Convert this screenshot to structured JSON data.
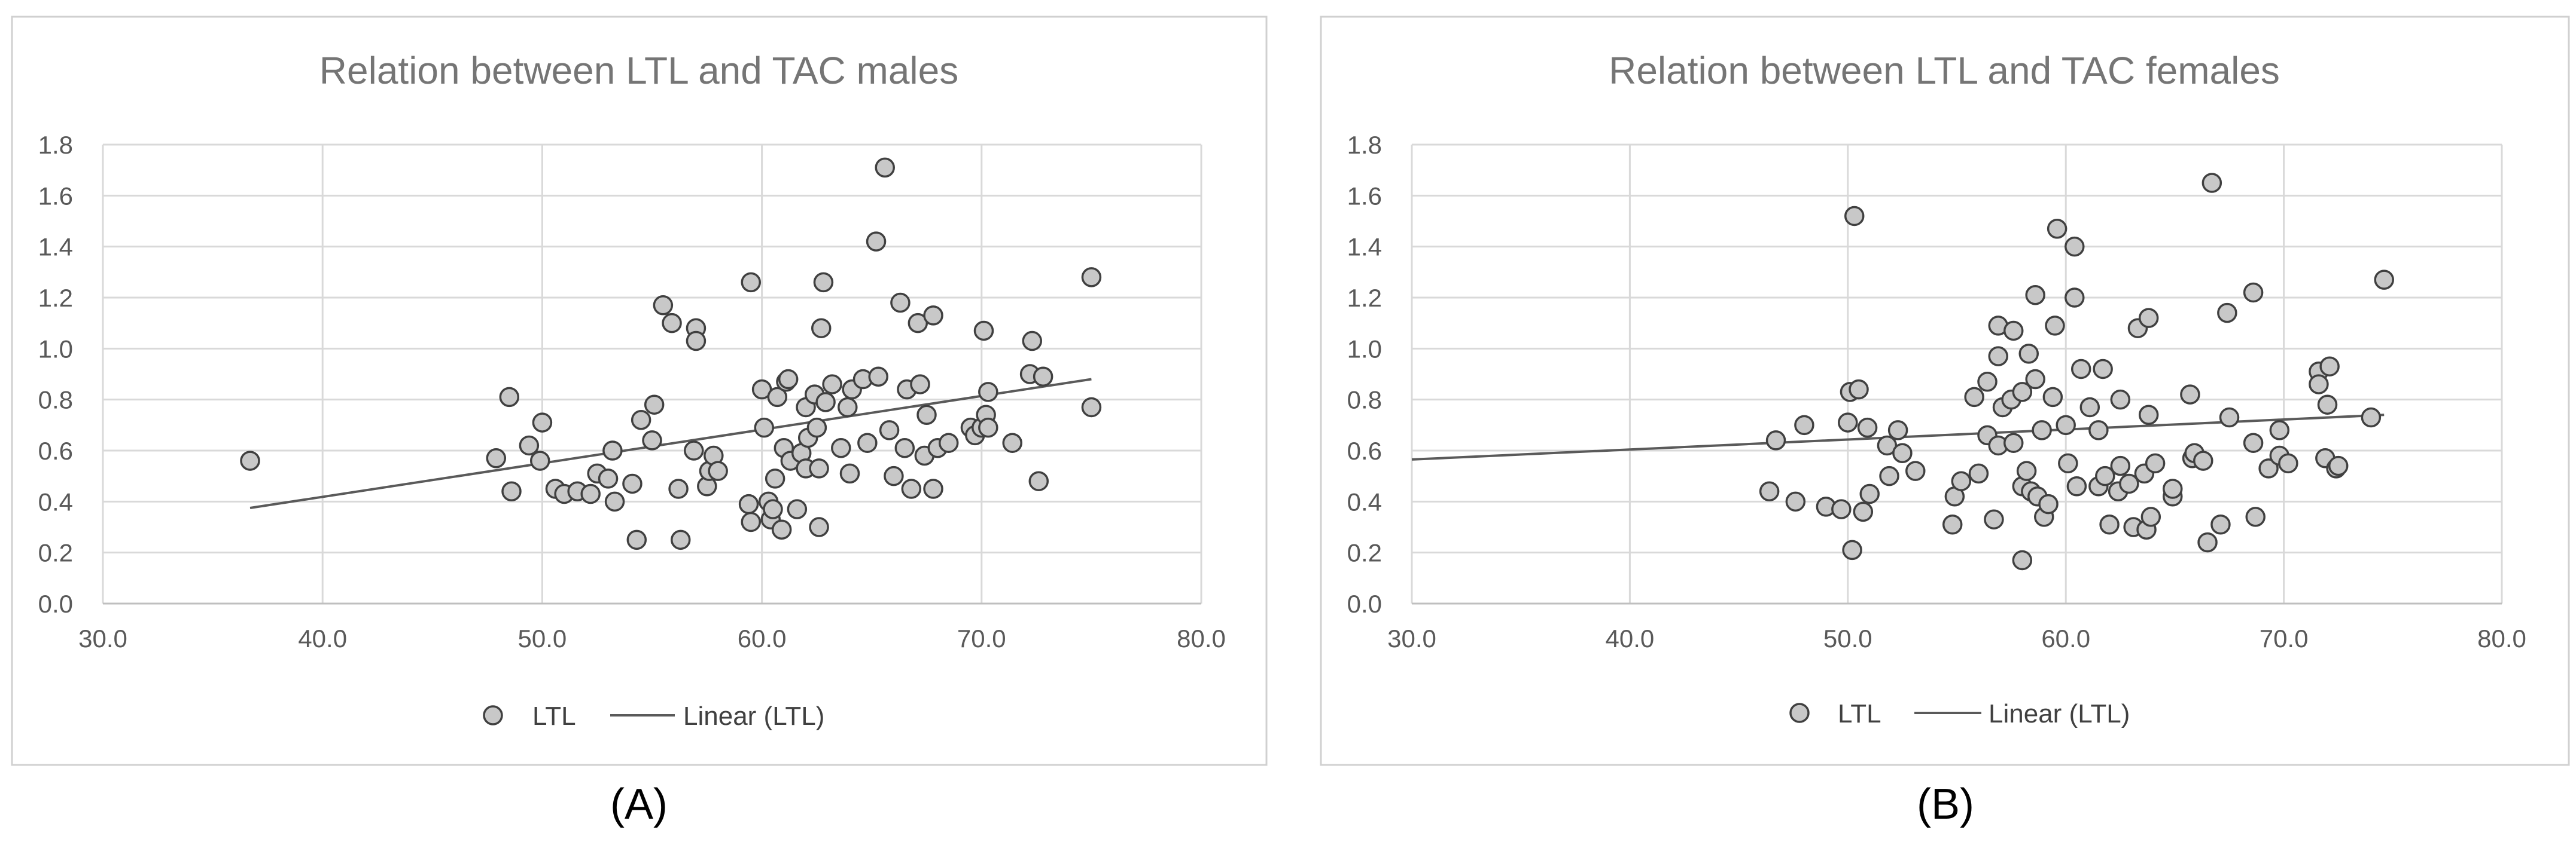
{
  "chart_data": [
    {
      "type": "scatter",
      "title": "Relation between LTL and TAC males",
      "panel_label": "(A)",
      "xlabel": "",
      "ylabel": "",
      "xlim": [
        30,
        80
      ],
      "ylim": [
        0,
        1.8
      ],
      "x_ticks": [
        30,
        40,
        50,
        60,
        70,
        80
      ],
      "x_tick_labels": [
        "30.0",
        "40.0",
        "50.0",
        "60.0",
        "70.0",
        "80.0"
      ],
      "y_ticks": [
        0,
        0.2,
        0.4,
        0.6,
        0.8,
        1.0,
        1.2,
        1.4,
        1.6,
        1.8
      ],
      "y_tick_labels": [
        "0.0",
        "0.2",
        "0.4",
        "0.6",
        "0.8",
        "1.0",
        "1.2",
        "1.4",
        "1.6",
        "1.8"
      ],
      "legend": {
        "position": "bottom",
        "scatter_label": "LTL",
        "trend_label": "Linear (LTL)"
      },
      "trendline": {
        "x": [
          36.7,
          75.0
        ],
        "y": [
          0.375,
          0.88
        ]
      },
      "grid": true,
      "series": [
        {
          "name": "LTL",
          "points": [
            [
              36.7,
              0.56
            ],
            [
              47.9,
              0.57
            ],
            [
              48.5,
              0.81
            ],
            [
              48.6,
              0.44
            ],
            [
              49.4,
              0.62
            ],
            [
              49.9,
              0.56
            ],
            [
              50.0,
              0.71
            ],
            [
              50.6,
              0.45
            ],
            [
              51.0,
              0.43
            ],
            [
              51.6,
              0.44
            ],
            [
              52.2,
              0.43
            ],
            [
              52.5,
              0.51
            ],
            [
              53.0,
              0.49
            ],
            [
              53.2,
              0.6
            ],
            [
              53.3,
              0.4
            ],
            [
              54.1,
              0.47
            ],
            [
              54.3,
              0.25
            ],
            [
              54.5,
              0.72
            ],
            [
              55.0,
              0.64
            ],
            [
              55.1,
              0.78
            ],
            [
              55.5,
              1.17
            ],
            [
              55.9,
              1.1
            ],
            [
              56.2,
              0.45
            ],
            [
              56.3,
              0.25
            ],
            [
              56.9,
              0.6
            ],
            [
              57.0,
              1.08
            ],
            [
              57.0,
              1.03
            ],
            [
              57.5,
              0.46
            ],
            [
              57.6,
              0.52
            ],
            [
              57.8,
              0.58
            ],
            [
              58.0,
              0.52
            ],
            [
              59.4,
              0.39
            ],
            [
              59.5,
              1.26
            ],
            [
              59.5,
              0.32
            ],
            [
              60.0,
              0.84
            ],
            [
              60.1,
              0.69
            ],
            [
              60.3,
              0.4
            ],
            [
              60.4,
              0.33
            ],
            [
              60.5,
              0.37
            ],
            [
              60.6,
              0.49
            ],
            [
              60.7,
              0.81
            ],
            [
              60.9,
              0.29
            ],
            [
              61.0,
              0.61
            ],
            [
              61.1,
              0.87
            ],
            [
              61.2,
              0.88
            ],
            [
              61.3,
              0.56
            ],
            [
              61.6,
              0.37
            ],
            [
              61.8,
              0.59
            ],
            [
              62.0,
              0.77
            ],
            [
              62.0,
              0.53
            ],
            [
              62.1,
              0.65
            ],
            [
              62.4,
              0.82
            ],
            [
              62.5,
              0.69
            ],
            [
              62.6,
              0.53
            ],
            [
              62.6,
              0.3
            ],
            [
              62.7,
              1.08
            ],
            [
              62.8,
              1.26
            ],
            [
              62.9,
              0.79
            ],
            [
              63.2,
              0.86
            ],
            [
              63.6,
              0.61
            ],
            [
              63.9,
              0.77
            ],
            [
              64.0,
              0.51
            ],
            [
              64.1,
              0.84
            ],
            [
              64.6,
              0.88
            ],
            [
              64.8,
              0.63
            ],
            [
              65.2,
              1.42
            ],
            [
              65.3,
              0.89
            ],
            [
              65.6,
              1.71
            ],
            [
              65.8,
              0.68
            ],
            [
              66.0,
              0.5
            ],
            [
              66.3,
              1.18
            ],
            [
              66.5,
              0.61
            ],
            [
              66.6,
              0.84
            ],
            [
              66.8,
              0.45
            ],
            [
              67.1,
              1.1
            ],
            [
              67.2,
              0.86
            ],
            [
              67.4,
              0.58
            ],
            [
              67.5,
              0.74
            ],
            [
              67.8,
              1.13
            ],
            [
              67.8,
              0.45
            ],
            [
              68.0,
              0.61
            ],
            [
              68.5,
              0.63
            ],
            [
              69.5,
              0.69
            ],
            [
              69.7,
              0.66
            ],
            [
              70.0,
              0.69
            ],
            [
              70.1,
              1.07
            ],
            [
              70.2,
              0.74
            ],
            [
              70.3,
              0.83
            ],
            [
              70.3,
              0.69
            ],
            [
              71.4,
              0.63
            ],
            [
              72.2,
              0.9
            ],
            [
              72.3,
              1.03
            ],
            [
              72.6,
              0.48
            ],
            [
              72.8,
              0.89
            ],
            [
              75.0,
              1.28
            ],
            [
              75.0,
              0.77
            ]
          ]
        }
      ]
    },
    {
      "type": "scatter",
      "title": "Relation between LTL and TAC females",
      "panel_label": "(B)",
      "xlabel": "",
      "ylabel": "",
      "xlim": [
        30,
        80
      ],
      "ylim": [
        0,
        1.8
      ],
      "x_ticks": [
        30,
        40,
        50,
        60,
        70,
        80
      ],
      "x_tick_labels": [
        "30.0",
        "40.0",
        "50.0",
        "60.0",
        "70.0",
        "80.0"
      ],
      "y_ticks": [
        0,
        0.2,
        0.4,
        0.6,
        0.8,
        1.0,
        1.2,
        1.4,
        1.6,
        1.8
      ],
      "y_tick_labels": [
        "0.0",
        "0.2",
        "0.4",
        "0.6",
        "0.8",
        "1.0",
        "1.2",
        "1.4",
        "1.6",
        "1.8"
      ],
      "legend": {
        "position": "bottom",
        "scatter_label": "LTL",
        "trend_label": "Linear (LTL)"
      },
      "trendline": {
        "x": [
          30.0,
          74.6
        ],
        "y": [
          0.565,
          0.74
        ]
      },
      "grid": true,
      "series": [
        {
          "name": "LTL",
          "points": [
            [
              46.4,
              0.44
            ],
            [
              46.7,
              0.64
            ],
            [
              47.6,
              0.4
            ],
            [
              48.0,
              0.7
            ],
            [
              49.0,
              0.38
            ],
            [
              49.7,
              0.37
            ],
            [
              50.0,
              0.71
            ],
            [
              50.1,
              0.83
            ],
            [
              50.2,
              0.21
            ],
            [
              50.3,
              1.52
            ],
            [
              50.5,
              0.84
            ],
            [
              50.7,
              0.36
            ],
            [
              50.9,
              0.69
            ],
            [
              51.0,
              0.43
            ],
            [
              51.8,
              0.62
            ],
            [
              51.9,
              0.5
            ],
            [
              52.3,
              0.68
            ],
            [
              52.5,
              0.59
            ],
            [
              53.1,
              0.52
            ],
            [
              54.8,
              0.31
            ],
            [
              54.9,
              0.42
            ],
            [
              55.2,
              0.48
            ],
            [
              55.8,
              0.81
            ],
            [
              56.0,
              0.51
            ],
            [
              56.4,
              0.66
            ],
            [
              56.4,
              0.87
            ],
            [
              56.7,
              0.33
            ],
            [
              56.9,
              0.62
            ],
            [
              56.9,
              1.09
            ],
            [
              56.9,
              0.97
            ],
            [
              57.1,
              0.77
            ],
            [
              57.5,
              0.8
            ],
            [
              57.6,
              1.07
            ],
            [
              57.6,
              0.63
            ],
            [
              58.0,
              0.46
            ],
            [
              58.0,
              0.17
            ],
            [
              58.0,
              0.83
            ],
            [
              58.2,
              0.52
            ],
            [
              58.3,
              0.98
            ],
            [
              58.4,
              0.44
            ],
            [
              58.6,
              0.88
            ],
            [
              58.6,
              1.21
            ],
            [
              58.7,
              0.42
            ],
            [
              58.9,
              0.68
            ],
            [
              59.0,
              0.34
            ],
            [
              59.2,
              0.39
            ],
            [
              59.4,
              0.81
            ],
            [
              59.5,
              1.09
            ],
            [
              59.6,
              1.47
            ],
            [
              60.0,
              0.7
            ],
            [
              60.1,
              0.55
            ],
            [
              60.4,
              1.4
            ],
            [
              60.4,
              1.2
            ],
            [
              60.5,
              0.46
            ],
            [
              60.7,
              0.92
            ],
            [
              61.1,
              0.77
            ],
            [
              61.5,
              0.46
            ],
            [
              61.5,
              0.68
            ],
            [
              61.7,
              0.92
            ],
            [
              61.8,
              0.5
            ],
            [
              62.0,
              0.31
            ],
            [
              62.4,
              0.44
            ],
            [
              62.5,
              0.8
            ],
            [
              62.5,
              0.54
            ],
            [
              62.9,
              0.47
            ],
            [
              63.1,
              0.3
            ],
            [
              63.3,
              1.08
            ],
            [
              63.6,
              0.51
            ],
            [
              63.7,
              0.29
            ],
            [
              63.8,
              1.12
            ],
            [
              63.8,
              0.74
            ],
            [
              63.9,
              0.34
            ],
            [
              64.1,
              0.55
            ],
            [
              64.9,
              0.42
            ],
            [
              64.9,
              0.45
            ],
            [
              65.7,
              0.82
            ],
            [
              65.8,
              0.57
            ],
            [
              65.9,
              0.59
            ],
            [
              66.3,
              0.56
            ],
            [
              66.5,
              0.24
            ],
            [
              66.7,
              1.65
            ],
            [
              67.1,
              0.31
            ],
            [
              67.4,
              1.14
            ],
            [
              67.5,
              0.73
            ],
            [
              68.6,
              1.22
            ],
            [
              68.6,
              0.63
            ],
            [
              68.7,
              0.34
            ],
            [
              69.3,
              0.53
            ],
            [
              69.8,
              0.68
            ],
            [
              69.8,
              0.58
            ],
            [
              70.2,
              0.55
            ],
            [
              71.6,
              0.91
            ],
            [
              71.6,
              0.86
            ],
            [
              71.9,
              0.57
            ],
            [
              72.0,
              0.78
            ],
            [
              72.1,
              0.93
            ],
            [
              72.4,
              0.53
            ],
            [
              72.5,
              0.54
            ],
            [
              74.0,
              0.73
            ],
            [
              74.6,
              1.27
            ]
          ]
        }
      ]
    }
  ]
}
